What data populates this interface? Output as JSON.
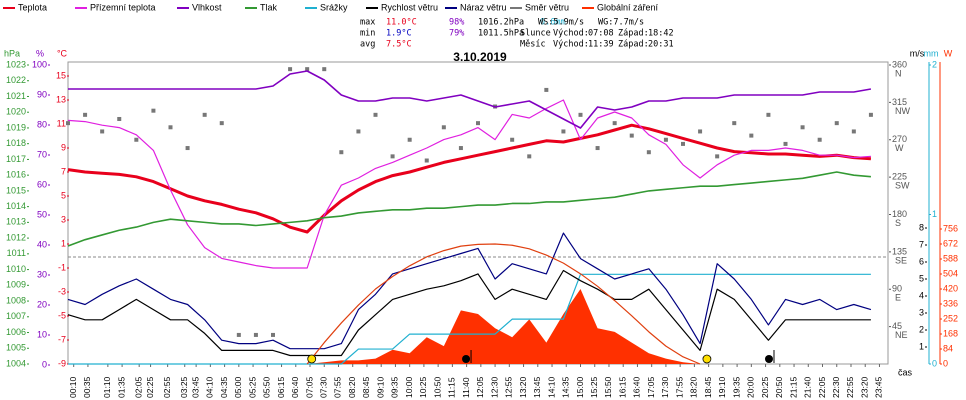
{
  "chart_data": {
    "type": "line",
    "title": "3.10.2019",
    "x_label": "čas",
    "stats": [
      {
        "label": "max",
        "values": [
          "11.0°C",
          "98%",
          "1016.2hPa",
          "0.6mm"
        ]
      },
      {
        "label": "min",
        "values": [
          "1.9°C",
          "79%",
          "1011.5hPa"
        ]
      },
      {
        "label": "avg",
        "values": [
          "7.5°C"
        ]
      }
    ],
    "wind_stats": [
      "WS:5.9m/s",
      "WG:7.7m/s"
    ],
    "sun": {
      "label": "Slunce",
      "rise_label": "Východ:",
      "rise": "07:08",
      "set_label": "Západ:",
      "set": "18:42"
    },
    "moon": {
      "label": "Měsíc",
      "rise_label": "Východ:",
      "rise": "11:39",
      "set_label": "Západ:",
      "set": "20:31"
    },
    "xlim": [
      "00:00",
      "24:00"
    ],
    "xticks": [
      "00:10",
      "00:35",
      "01:10",
      "01:35",
      "02:05",
      "02:25",
      "02:55",
      "03:25",
      "03:45",
      "04:10",
      "04:35",
      "05:00",
      "05:25",
      "05:50",
      "06:15",
      "06:40",
      "07:05",
      "07:30",
      "07:55",
      "08:20",
      "08:45",
      "09:10",
      "09:35",
      "10:00",
      "10:25",
      "10:50",
      "11:15",
      "11:40",
      "12:05",
      "12:30",
      "12:55",
      "13:20",
      "13:45",
      "14:10",
      "14:35",
      "15:00",
      "15:25",
      "15:50",
      "16:15",
      "16:40",
      "17:05",
      "17:30",
      "17:55",
      "18:20",
      "18:45",
      "19:10",
      "19:35",
      "20:00",
      "20:25",
      "20:50",
      "21:15",
      "21:40",
      "22:05",
      "22:30",
      "22:55",
      "23:20",
      "23:45"
    ],
    "x": [
      "00:00",
      "00:30",
      "01:00",
      "01:30",
      "02:00",
      "02:30",
      "03:00",
      "03:30",
      "04:00",
      "04:30",
      "05:00",
      "05:30",
      "06:00",
      "06:30",
      "07:00",
      "07:30",
      "08:00",
      "08:30",
      "09:00",
      "09:30",
      "10:00",
      "10:30",
      "11:00",
      "11:30",
      "12:00",
      "12:30",
      "13:00",
      "13:30",
      "14:00",
      "14:30",
      "15:00",
      "15:30",
      "16:00",
      "16:30",
      "17:00",
      "17:30",
      "18:00",
      "18:30",
      "19:00",
      "19:30",
      "20:00",
      "20:30",
      "21:00",
      "21:30",
      "22:00",
      "22:30",
      "23:00",
      "23:30"
    ],
    "axes": {
      "press": {
        "unit": "hPa",
        "color": "#339933",
        "lim": [
          1004,
          1023
        ],
        "ticks": [
          1023,
          1022,
          1021,
          1020,
          1019,
          1018,
          1017,
          1016,
          1015,
          1014,
          1013,
          1012,
          1011,
          1010,
          1009,
          1008,
          1007,
          1006,
          1005,
          1004
        ]
      },
      "hum": {
        "unit": "%",
        "color": "#8000c0",
        "lim": [
          0,
          100
        ],
        "ticks": [
          100,
          90,
          80,
          70,
          60,
          50,
          40,
          30,
          20,
          10,
          0
        ]
      },
      "temp": {
        "unit": "°C",
        "color": "#e8001c",
        "lim": [
          -9,
          15
        ],
        "ticks": [
          15,
          13,
          11,
          9,
          7,
          5,
          3,
          1,
          -1,
          -3,
          -5,
          -7,
          -9
        ]
      },
      "dir": {
        "color": "#555555",
        "lim": [
          0,
          360
        ],
        "ticks": [
          360,
          315,
          270,
          225,
          180,
          135,
          90,
          45
        ],
        "compass": [
          "N",
          "NW",
          "W",
          "SW",
          "S",
          "SE",
          "E",
          "NE"
        ]
      },
      "wind": {
        "unit": "m/s",
        "color": "#000000",
        "lim": [
          0,
          8
        ],
        "ticks": [
          8,
          7,
          6,
          5,
          4,
          3,
          2,
          1
        ]
      },
      "rain": {
        "unit": "mm",
        "color": "#20b0d0",
        "lim": [
          0,
          2
        ],
        "ticks": [
          2,
          1,
          0
        ]
      },
      "rad": {
        "unit": "W",
        "color": "#ff3000",
        "lim": [
          0,
          756
        ],
        "ticks": [
          756,
          672,
          588,
          504,
          420,
          336,
          252,
          168,
          84,
          0
        ]
      }
    },
    "series": [
      {
        "name": "Teplota",
        "color": "#e8001c",
        "axis": "temp",
        "kind": "line",
        "values": [
          7.2,
          7.0,
          6.9,
          6.8,
          6.6,
          6.2,
          5.6,
          5.0,
          4.6,
          4.3,
          3.9,
          3.6,
          3.1,
          2.4,
          2.0,
          3.4,
          4.6,
          5.5,
          6.2,
          6.7,
          7.0,
          7.4,
          7.8,
          8.1,
          8.4,
          8.7,
          9.0,
          9.3,
          9.6,
          9.5,
          9.8,
          10.1,
          10.5,
          10.9,
          10.6,
          10.2,
          9.8,
          9.4,
          9.0,
          8.7,
          8.6,
          8.5,
          8.5,
          8.4,
          8.3,
          8.4,
          8.2,
          8.1
        ]
      },
      {
        "name": "Přízemní teplota",
        "color": "#e020e0",
        "axis": "temp",
        "kind": "line",
        "values": [
          11.3,
          11.2,
          10.9,
          10.7,
          10.1,
          8.8,
          5.5,
          2.6,
          0.7,
          -0.2,
          -0.5,
          -0.8,
          -1.0,
          -1.0,
          -1.0,
          3.4,
          5.9,
          6.5,
          7.3,
          7.8,
          8.4,
          9.0,
          9.7,
          10.1,
          10.7,
          9.7,
          11.8,
          11.5,
          12.3,
          13.0,
          9.7,
          11.5,
          12.0,
          11.5,
          10.1,
          9.3,
          7.6,
          6.5,
          7.6,
          8.4,
          8.8,
          8.8,
          9.0,
          8.8,
          8.4,
          8.4,
          8.2,
          8.3
        ]
      },
      {
        "name": "Vlhkost",
        "color": "#8000c0",
        "axis": "hum",
        "kind": "line",
        "values": [
          92,
          92,
          92,
          92,
          92,
          92,
          92,
          92,
          92,
          92,
          92,
          92,
          93,
          97,
          98,
          95,
          90,
          88,
          88,
          89,
          89,
          88,
          89,
          90,
          88,
          86,
          87,
          88,
          85,
          82,
          79,
          86,
          85,
          86,
          88,
          88,
          89,
          89,
          89,
          90,
          90,
          90,
          90,
          90,
          91,
          91,
          91,
          92
        ]
      },
      {
        "name": "Tlak",
        "color": "#339933",
        "axis": "press",
        "kind": "line",
        "values": [
          1011.5,
          1011.9,
          1012.2,
          1012.5,
          1012.7,
          1013.0,
          1013.2,
          1013.1,
          1013.0,
          1012.9,
          1012.9,
          1012.8,
          1012.9,
          1013.0,
          1013.1,
          1013.3,
          1013.4,
          1013.6,
          1013.7,
          1013.8,
          1013.8,
          1013.9,
          1013.9,
          1014.0,
          1014.1,
          1014.1,
          1014.2,
          1014.2,
          1014.3,
          1014.3,
          1014.4,
          1014.5,
          1014.6,
          1014.8,
          1015.0,
          1015.1,
          1015.2,
          1015.3,
          1015.3,
          1015.4,
          1015.5,
          1015.6,
          1015.7,
          1015.8,
          1016.0,
          1016.2,
          1016.0,
          1015.9
        ]
      },
      {
        "name": "Srážky",
        "color": "#20b0d0",
        "axis": "rain",
        "kind": "line",
        "values": [
          0,
          0,
          0,
          0,
          0,
          0,
          0,
          0,
          0,
          0,
          0,
          0,
          0,
          0,
          0,
          0,
          0,
          0.1,
          0.1,
          0.1,
          0.2,
          0.2,
          0.2,
          0.2,
          0.2,
          0.2,
          0.3,
          0.3,
          0.3,
          0.3,
          0.6,
          0.6,
          0.6,
          0.6,
          0.6,
          0.6,
          0.6,
          0.6,
          0.6,
          0.6,
          0.6,
          0.6,
          0.6,
          0.6,
          0.6,
          0.6,
          0.6,
          0.6
        ]
      },
      {
        "name": "Rychlost větru",
        "color": "#000000",
        "axis": "wind",
        "kind": "line",
        "values": [
          2.9,
          2.6,
          2.6,
          3.2,
          3.8,
          3.2,
          2.6,
          2.6,
          1.8,
          0.8,
          0.8,
          0.8,
          0.8,
          0.5,
          0.5,
          0.5,
          0.5,
          2.0,
          2.9,
          3.8,
          4.1,
          4.4,
          4.6,
          4.9,
          5.3,
          3.8,
          4.4,
          4.1,
          3.8,
          5.5,
          4.9,
          4.4,
          3.8,
          3.8,
          4.4,
          3.2,
          2.0,
          0.8,
          4.4,
          3.8,
          2.6,
          1.4,
          2.6,
          2.6,
          2.6,
          2.6,
          2.6,
          2.6
        ]
      },
      {
        "name": "Náraz větru",
        "color": "#000080",
        "axis": "wind",
        "kind": "line",
        "values": [
          3.8,
          3.5,
          4.1,
          4.6,
          5.0,
          4.4,
          3.8,
          3.5,
          2.6,
          1.4,
          1.2,
          1.2,
          1.4,
          0.9,
          0.9,
          0.9,
          1.2,
          3.2,
          4.1,
          5.3,
          5.6,
          5.9,
          6.2,
          6.5,
          6.8,
          5.0,
          5.9,
          5.6,
          5.3,
          7.7,
          6.2,
          5.6,
          5.0,
          5.3,
          5.6,
          4.4,
          2.9,
          1.2,
          5.9,
          5.0,
          3.8,
          2.3,
          3.8,
          3.5,
          3.8,
          3.2,
          3.5,
          3.2
        ]
      },
      {
        "name": "Směr větru",
        "color": "#777777",
        "axis": "dir",
        "kind": "scatter",
        "values": [
          290,
          300,
          280,
          295,
          270,
          305,
          285,
          260,
          300,
          290,
          35,
          35,
          35,
          355,
          355,
          355,
          255,
          280,
          300,
          250,
          270,
          245,
          285,
          260,
          290,
          310,
          270,
          250,
          330,
          280,
          300,
          260,
          290,
          275,
          255,
          270,
          265,
          280,
          250,
          290,
          275,
          300,
          265,
          285,
          270,
          290,
          280,
          300
        ]
      },
      {
        "name": "Globální záření",
        "color": "#ff3000",
        "axis": "rad",
        "kind": "area",
        "values": [
          0,
          0,
          0,
          0,
          0,
          0,
          0,
          0,
          0,
          0,
          0,
          0,
          0,
          0,
          0,
          10,
          20,
          20,
          30,
          80,
          60,
          150,
          100,
          300,
          280,
          200,
          150,
          250,
          120,
          280,
          420,
          200,
          180,
          120,
          60,
          30,
          10,
          0,
          0,
          0,
          0,
          0,
          0,
          0,
          0,
          0,
          0,
          0
        ]
      },
      {
        "color": "#e04010",
        "axis": "rad",
        "kind": "line",
        "values": [
          null,
          null,
          null,
          null,
          null,
          null,
          null,
          null,
          null,
          null,
          null,
          null,
          null,
          null,
          0,
          120,
          230,
          330,
          420,
          490,
          550,
          600,
          635,
          660,
          670,
          672,
          665,
          645,
          610,
          565,
          505,
          435,
          355,
          270,
          180,
          100,
          40,
          0,
          null,
          null,
          null,
          null,
          null,
          null,
          null,
          null,
          null,
          null
        ]
      }
    ]
  }
}
